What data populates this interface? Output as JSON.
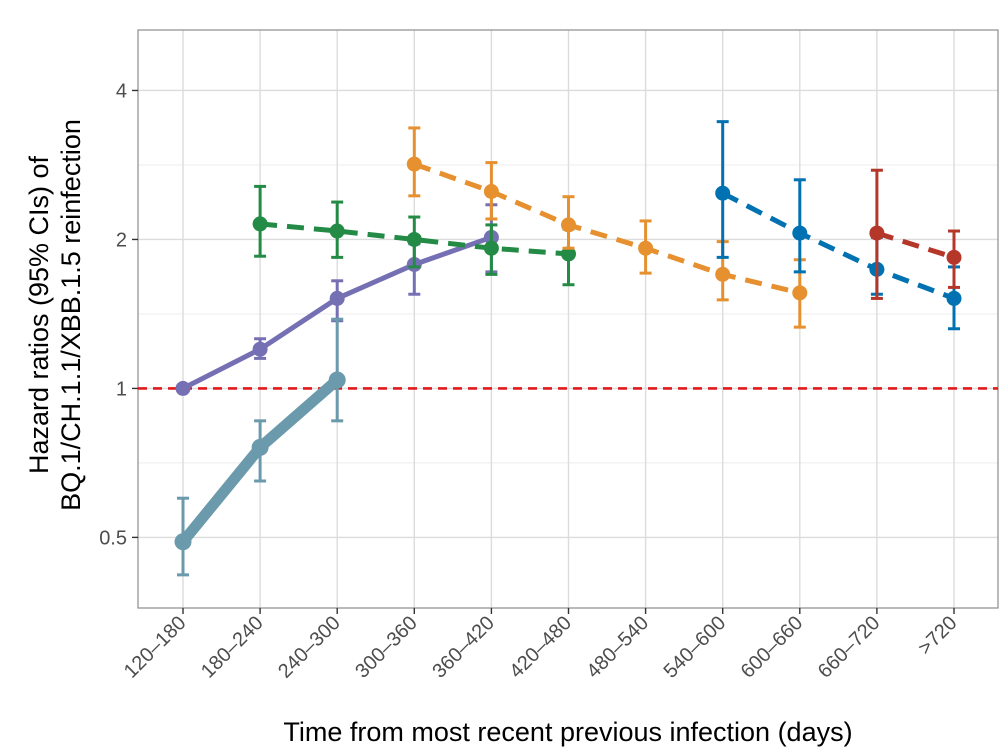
{
  "chart_data": {
    "type": "line",
    "xlabel": "Time from most recent previous infection (days)",
    "ylabel_line1": "Hazard ratios (95% CIs) of",
    "ylabel_line2": "BQ.1/CH.1.1/XBB.1.5 reinfection",
    "y_scale": "log2",
    "ylim": [
      0.36,
      5.3
    ],
    "y_ticks": [
      0.5,
      1,
      2,
      4
    ],
    "y_tick_labels": [
      "0.5",
      "1",
      "2",
      "4"
    ],
    "categories": [
      "120–180",
      "180–240",
      "240–300",
      "300–360",
      "360–420",
      "420–480",
      "480–540",
      "540–600",
      "600–660",
      "660–720",
      ">720"
    ],
    "reference_line": {
      "y": 1,
      "color": "#e31a1c",
      "style": "dashed"
    },
    "series": [
      {
        "name": "cohort-starting-120-180",
        "color": "#7570b3",
        "line_style": "solid",
        "x": [
          0,
          1,
          2,
          3,
          4
        ],
        "values": [
          1.0,
          1.2,
          1.52,
          1.78,
          2.02
        ],
        "ci_low": [
          1.0,
          1.15,
          1.37,
          1.55,
          1.72
        ],
        "ci_high": [
          1.0,
          1.26,
          1.65,
          1.96,
          2.35
        ]
      },
      {
        "name": "cohort-starting-120-180-b",
        "color": "#6a9aac",
        "line_style": "solid-thick",
        "x": [
          0,
          1,
          2
        ],
        "values": [
          0.49,
          0.76,
          1.04
        ],
        "ci_low": [
          0.42,
          0.65,
          0.86
        ],
        "ci_high": [
          0.6,
          0.86,
          1.38
        ]
      },
      {
        "name": "cohort-starting-180-240",
        "color": "#238b45",
        "line_style": "dashed",
        "x": [
          1,
          2,
          3,
          4,
          5
        ],
        "values": [
          2.15,
          2.08,
          2.0,
          1.92,
          1.87
        ],
        "ci_low": [
          1.85,
          1.84,
          1.76,
          1.7,
          1.62
        ],
        "ci_high": [
          2.56,
          2.38,
          2.22,
          2.14,
          2.1
        ]
      },
      {
        "name": "cohort-starting-300-360",
        "color": "#e6902f",
        "line_style": "dashed",
        "x": [
          3,
          4,
          5,
          6,
          7,
          8
        ],
        "values": [
          2.84,
          2.5,
          2.14,
          1.92,
          1.7,
          1.56
        ],
        "ci_low": [
          2.45,
          2.2,
          1.92,
          1.71,
          1.51,
          1.33
        ],
        "ci_high": [
          3.36,
          2.86,
          2.44,
          2.18,
          1.98,
          1.82
        ]
      },
      {
        "name": "cohort-starting-540-600",
        "color": "#0072b2",
        "line_style": "dashed",
        "x": [
          7,
          8,
          9,
          10
        ],
        "values": [
          2.48,
          2.06,
          1.74,
          1.52
        ],
        "ci_low": [
          1.84,
          1.72,
          1.55,
          1.32
        ],
        "ci_high": [
          3.46,
          2.64,
          2.02,
          1.76
        ]
      },
      {
        "name": "cohort-starting-660-720",
        "color": "#b5372a",
        "line_style": "dashed",
        "x": [
          9,
          10
        ],
        "values": [
          2.06,
          1.84
        ],
        "ci_low": [
          1.52,
          1.6
        ],
        "ci_high": [
          2.76,
          2.08
        ]
      }
    ]
  }
}
